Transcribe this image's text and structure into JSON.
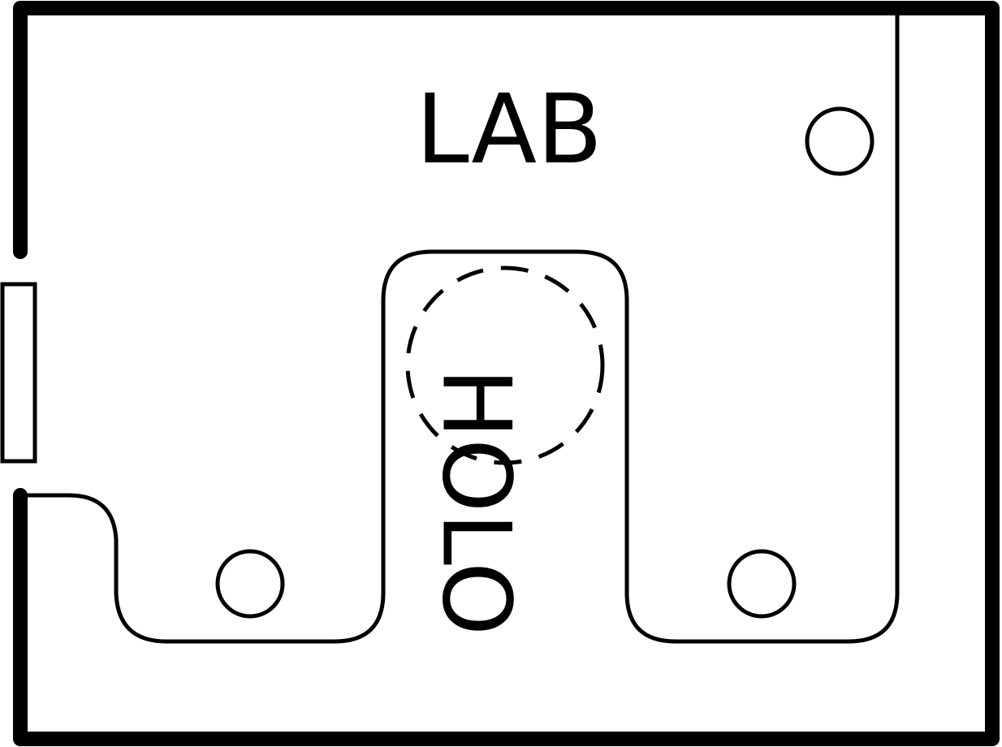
{
  "diagram": {
    "room_label": "LAB",
    "center_label": "HOLO",
    "colors": {
      "line": "#000000",
      "background": "#ffffff"
    }
  }
}
